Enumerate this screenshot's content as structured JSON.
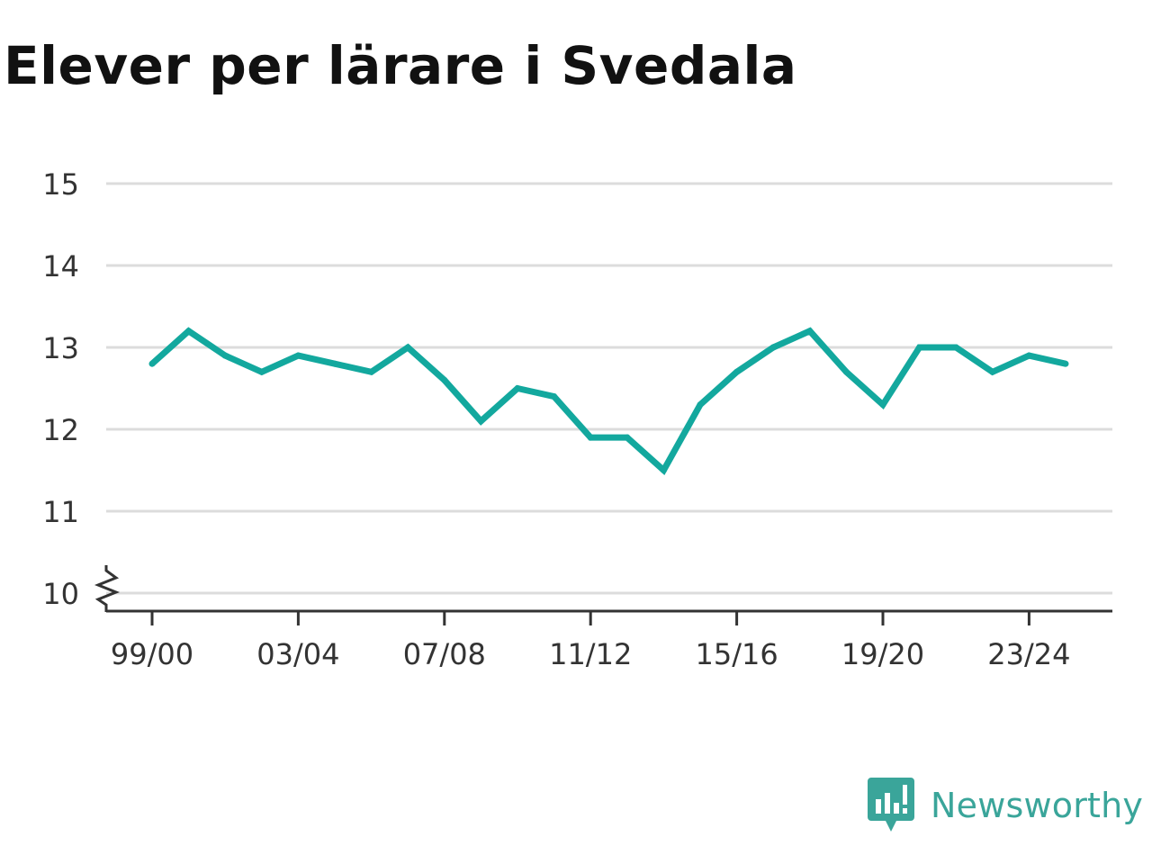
{
  "chart_data": {
    "type": "line",
    "title": "Elever per lärare i Svedala",
    "xlabel": "",
    "ylabel": "",
    "ylim": [
      10,
      15
    ],
    "y_ticks": [
      10,
      11,
      12,
      13,
      14,
      15
    ],
    "x_tick_labels": [
      "99/00",
      "03/04",
      "07/08",
      "11/12",
      "15/16",
      "19/20",
      "23/24"
    ],
    "x": [
      "99/00",
      "00/01",
      "01/02",
      "02/03",
      "03/04",
      "04/05",
      "05/06",
      "06/07",
      "07/08",
      "08/09",
      "09/10",
      "10/11",
      "11/12",
      "12/13",
      "13/14",
      "14/15",
      "15/16",
      "16/17",
      "17/18",
      "18/19",
      "19/20",
      "20/21",
      "21/22",
      "22/23",
      "23/24",
      "24/25"
    ],
    "series": [
      {
        "values": [
          12.8,
          13.2,
          12.9,
          12.7,
          12.9,
          12.8,
          12.7,
          13.0,
          12.6,
          12.1,
          12.5,
          12.4,
          11.9,
          11.9,
          11.5,
          12.3,
          12.7,
          13.0,
          13.2,
          12.7,
          12.3,
          13.0,
          13.0,
          12.7,
          12.9,
          12.8
        ],
        "color": "#13a89e"
      }
    ],
    "grid": true,
    "axis_break": true
  },
  "logo": {
    "text": "Newsworthy",
    "color": "#3aa59a"
  }
}
